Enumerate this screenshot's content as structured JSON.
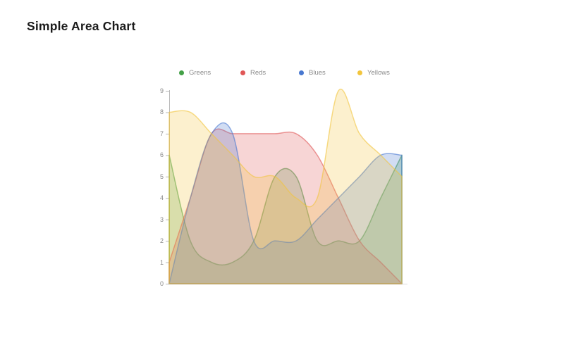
{
  "page": {
    "title": "Simple Area Chart"
  },
  "legend": {
    "items": [
      {
        "label": "Greens",
        "color": "#43a047"
      },
      {
        "label": "Reds",
        "color": "#e05757"
      },
      {
        "label": "Blues",
        "color": "#4878d0"
      },
      {
        "label": "Yellows",
        "color": "#f2c53d"
      }
    ]
  },
  "chart_data": {
    "type": "area",
    "title": "Simple Area Chart",
    "smoothing": "spline",
    "grid": false,
    "legend_position": "top",
    "xlabel": "",
    "ylabel": "",
    "x": [
      0,
      1,
      2,
      3,
      4,
      5,
      6,
      7,
      8,
      9,
      10,
      11
    ],
    "x_tick_labels": [],
    "ylim": [
      0,
      9
    ],
    "y_ticks": [
      0,
      1,
      2,
      3,
      4,
      5,
      6,
      7,
      8,
      9
    ],
    "series": [
      {
        "name": "Greens",
        "color": "#43a047",
        "values": [
          6,
          2,
          1,
          1,
          2,
          5,
          5,
          2,
          2,
          2,
          4,
          6
        ]
      },
      {
        "name": "Reds",
        "color": "#e05757",
        "values": [
          1,
          4,
          7,
          7,
          7,
          7,
          7,
          6,
          4,
          2,
          1,
          0
        ]
      },
      {
        "name": "Blues",
        "color": "#4878d0",
        "values": [
          0,
          4,
          7,
          7,
          2,
          2,
          2,
          3,
          4,
          5,
          6,
          6
        ]
      },
      {
        "name": "Yellows",
        "color": "#f2c53d",
        "values": [
          8,
          8,
          7,
          6,
          5,
          5,
          4,
          4,
          9,
          7,
          6,
          5
        ]
      }
    ],
    "axis_color": "#b9b9b9",
    "baseline_color": "#dddddd",
    "fill_opacity": 0.25,
    "stroke_opacity": 0.6
  }
}
